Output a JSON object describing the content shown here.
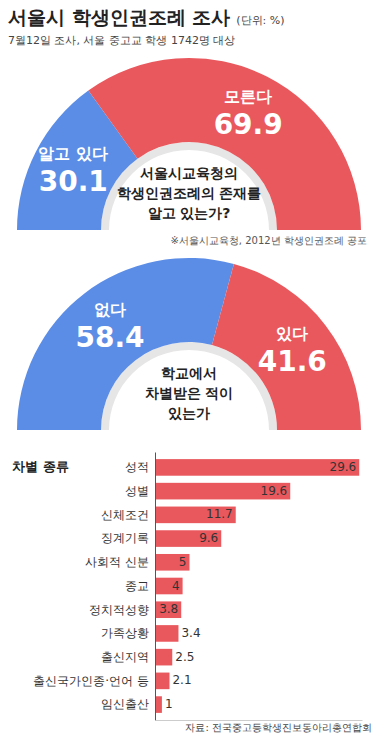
{
  "title": "서울시 학생인권조례 조사",
  "unit": "(단위: %)",
  "subtitle": "7월12일 조사, 서울 중고교 학생 1742명 대상",
  "source": "자료: 전국중고등학생진보동아리총연합회",
  "chart_data": [
    {
      "type": "pie",
      "title": [
        "서울시교육청의",
        "학생인권조례의 존재를",
        "알고 있는가?"
      ],
      "note": "※서울시교육청, 2012년 학생인권조례 공포",
      "categories": [
        "알고 있다",
        "모른다"
      ],
      "values": [
        30.1,
        69.9
      ],
      "colors": [
        "#5b8de6",
        "#e9585d"
      ],
      "data_labels": true
    },
    {
      "type": "pie",
      "title": [
        "학교에서",
        "차별받은 적이",
        "있는가"
      ],
      "categories": [
        "없다",
        "있다"
      ],
      "values": [
        58.4,
        41.6
      ],
      "colors": [
        "#5b8de6",
        "#e9585d"
      ],
      "data_labels": true
    },
    {
      "type": "bar",
      "title": "차별 종류",
      "orientation": "horizontal",
      "categories": [
        "성적",
        "성별",
        "신체조건",
        "징계기록",
        "사회적 신분",
        "종교",
        "정치적성향",
        "가족상황",
        "출신지역",
        "출신국가인종·언어 등",
        "임신출산"
      ],
      "values": [
        29.6,
        19.6,
        11.7,
        9.6,
        5,
        4,
        3.8,
        3.4,
        2.5,
        2.1,
        1
      ],
      "color": "#e9585d",
      "xlim": [
        0,
        30
      ],
      "data_labels": true,
      "tick_labels": "y"
    }
  ]
}
